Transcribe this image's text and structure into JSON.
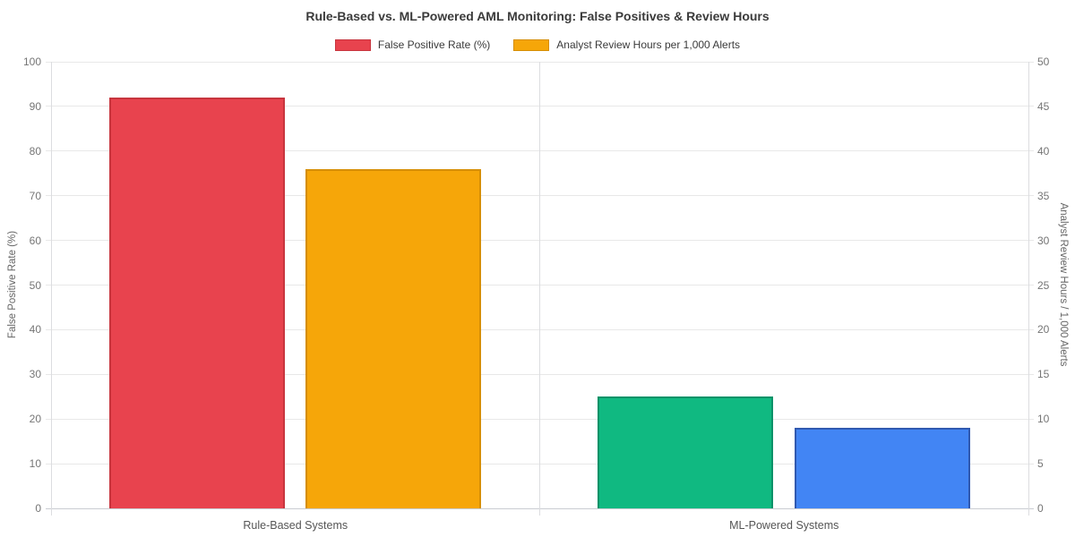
{
  "chart_data": {
    "type": "bar",
    "title": "Rule-Based vs. ML-Powered AML Monitoring: False Positives & Review Hours",
    "categories": [
      "Rule-Based Systems",
      "ML-Powered Systems"
    ],
    "series": [
      {
        "name": "False Positive Rate (%)",
        "axis": "left",
        "values": [
          92,
          25
        ],
        "colors": [
          "#E8434E",
          "#10B981"
        ],
        "border_colors": [
          "#C7353E",
          "#0C9268"
        ]
      },
      {
        "name": "Analyst Review Hours per 1,000 Alerts",
        "axis": "right",
        "values": [
          38,
          9
        ],
        "colors": [
          "#F6A609",
          "#4285F4"
        ],
        "border_colors": [
          "#D68E04",
          "#3059B0"
        ]
      }
    ],
    "left_axis": {
      "label": "False Positive Rate (%)",
      "min": 0,
      "max": 100,
      "ticks": [
        0,
        10,
        20,
        30,
        40,
        50,
        60,
        70,
        80,
        90,
        100
      ]
    },
    "right_axis": {
      "label": "Analyst Review Hours / 1,000 Alerts",
      "min": 0,
      "max": 50,
      "ticks": [
        0,
        5,
        10,
        15,
        20,
        25,
        30,
        35,
        40,
        45,
        50
      ]
    },
    "legend": [
      {
        "label": "False Positive Rate (%)",
        "color": "#E8434E",
        "border_color": "#C7353E"
      },
      {
        "label": "Analyst Review Hours per 1,000 Alerts",
        "color": "#F6A609",
        "border_color": "#D68E04"
      }
    ],
    "legend_position": "top",
    "grid": true,
    "background": "#FFFFFF"
  }
}
